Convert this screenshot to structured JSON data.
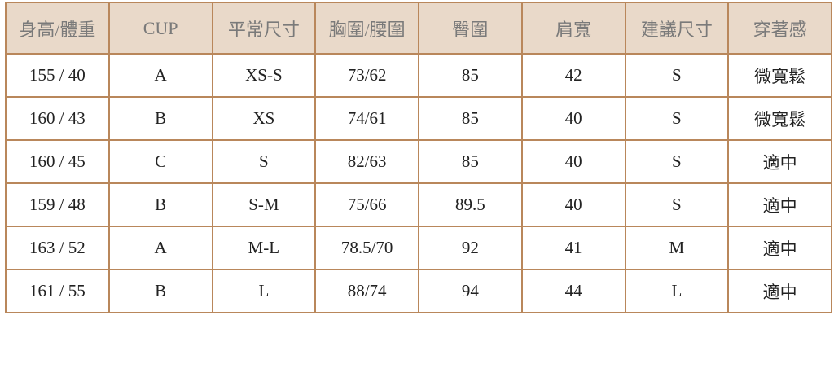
{
  "table": {
    "headers": [
      "身高/體重",
      "CUP",
      "平常尺寸",
      "胸圍/腰圍",
      "臀圍",
      "肩寬",
      "建議尺寸",
      "穿著感"
    ],
    "rows": [
      [
        "155 / 40",
        "A",
        "XS-S",
        "73/62",
        "85",
        "42",
        "S",
        "微寬鬆"
      ],
      [
        "160 / 43",
        "B",
        "XS",
        "74/61",
        "85",
        "40",
        "S",
        "微寬鬆"
      ],
      [
        "160 / 45",
        "C",
        "S",
        "82/63",
        "85",
        "40",
        "S",
        "適中"
      ],
      [
        "159 / 48",
        "B",
        "S-M",
        "75/66",
        "89.5",
        "40",
        "S",
        "適中"
      ],
      [
        "163 / 52",
        "A",
        "M-L",
        "78.5/70",
        "92",
        "41",
        "M",
        "適中"
      ],
      [
        "161 / 55",
        "B",
        "L",
        "88/74",
        "94",
        "44",
        "L",
        "適中"
      ]
    ]
  },
  "colors": {
    "header_bg": "#e9d9c9",
    "border": "#b9875b",
    "header_text": "#7a7a7a"
  }
}
